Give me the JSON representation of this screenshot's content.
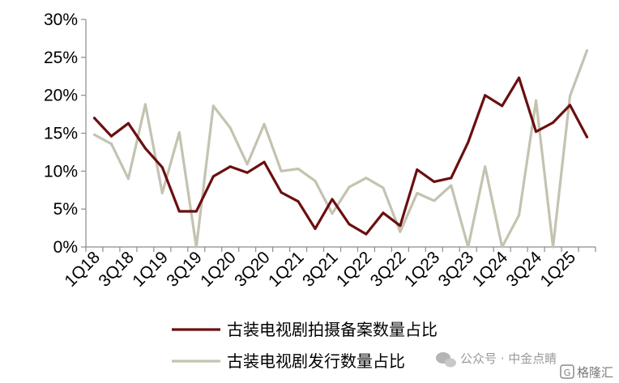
{
  "chart_data": {
    "type": "line",
    "title": "",
    "xlabel": "",
    "ylabel": "",
    "ylim": [
      0,
      30
    ],
    "y_ticks": [
      0,
      5,
      10,
      15,
      20,
      25,
      30
    ],
    "y_tick_format": "percent",
    "x": [
      "1Q18",
      "2Q18",
      "3Q18",
      "4Q18",
      "1Q19",
      "2Q19",
      "3Q19",
      "4Q19",
      "1Q20",
      "2Q20",
      "3Q20",
      "4Q20",
      "1Q21",
      "2Q21",
      "3Q21",
      "4Q21",
      "1Q22",
      "2Q22",
      "3Q22",
      "4Q22",
      "1Q23",
      "2Q23",
      "3Q23",
      "4Q23",
      "1Q24",
      "2Q24",
      "3Q24",
      "4Q24",
      "1Q25",
      "2Q25"
    ],
    "x_tick_labels": [
      "1Q18",
      "3Q18",
      "1Q19",
      "3Q19",
      "1Q20",
      "3Q20",
      "1Q21",
      "3Q21",
      "1Q22",
      "3Q22",
      "1Q23",
      "3Q23",
      "1Q24",
      "3Q24",
      "1Q25"
    ],
    "grid": false,
    "legend_position": "bottom",
    "series": [
      {
        "name": "古装电视剧拍摄备案数量占比",
        "color": "#6b0f0f",
        "values": [
          17.0,
          14.6,
          16.3,
          13.0,
          10.5,
          4.7,
          4.7,
          9.3,
          10.6,
          9.8,
          11.2,
          7.2,
          6.0,
          2.4,
          6.3,
          3.0,
          1.7,
          4.5,
          2.8,
          10.2,
          8.6,
          9.1,
          13.8,
          20.0,
          18.6,
          22.3,
          15.2,
          16.4,
          18.7,
          14.5
        ]
      },
      {
        "name": "古装电视剧发行数量占比",
        "color": "#c4c3b1",
        "values": [
          14.8,
          13.6,
          9.0,
          18.8,
          7.1,
          15.1,
          0.0,
          18.6,
          15.7,
          10.9,
          16.2,
          10.0,
          10.3,
          8.7,
          4.4,
          7.9,
          9.1,
          7.8,
          2.0,
          7.1,
          6.1,
          8.1,
          0.0,
          10.6,
          0.0,
          4.2,
          19.3,
          0.0,
          19.9,
          25.9
        ]
      }
    ]
  },
  "watermark": {
    "text": "公众号 · 中金点睛",
    "logo_text": "格隆汇"
  }
}
